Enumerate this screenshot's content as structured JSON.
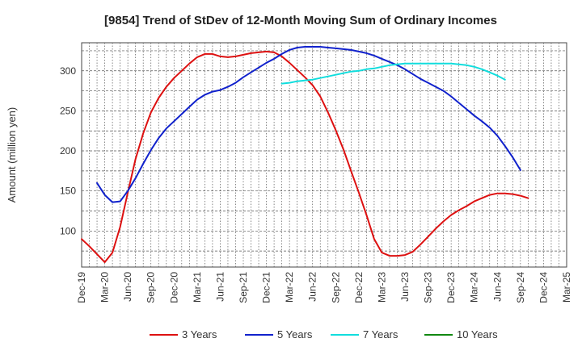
{
  "chart_data": {
    "type": "line",
    "title": "[9854]  Trend of StDev of 12-Month Moving Sum of Ordinary Incomes",
    "xlabel": "",
    "ylabel": "Amount (million yen)",
    "ylim": [
      55,
      335
    ],
    "y_ticks": [
      100,
      150,
      200,
      250,
      300
    ],
    "x_ticks": [
      "Dec-19",
      "Mar-20",
      "Jun-20",
      "Sep-20",
      "Dec-20",
      "Mar-21",
      "Jun-21",
      "Sep-21",
      "Dec-21",
      "Mar-22",
      "Jun-22",
      "Sep-22",
      "Dec-22",
      "Mar-23",
      "Jun-23",
      "Sep-23",
      "Dec-23",
      "Mar-24",
      "Jun-24",
      "Sep-24",
      "Dec-24",
      "Mar-25"
    ],
    "grid": true,
    "legend_position": "bottom",
    "series": [
      {
        "name": "3 Years",
        "color": "#dd1111",
        "start_index": 0,
        "values": [
          90,
          81,
          71,
          61,
          73,
          105,
          148,
          190,
          222,
          248,
          266,
          280,
          291,
          300,
          309,
          317,
          321,
          321,
          318,
          317,
          318,
          320,
          322,
          323,
          324,
          323,
          318,
          310,
          301,
          292,
          282,
          268,
          248,
          226,
          202,
          175,
          148,
          120,
          90,
          73,
          69,
          69,
          70,
          74,
          83,
          93,
          103,
          112,
          120,
          126,
          131,
          137,
          141,
          145,
          147,
          147,
          146,
          144,
          141
        ]
      },
      {
        "name": "5 Years",
        "color": "#1122cc",
        "start_index": 2,
        "values": [
          160,
          145,
          136,
          137,
          150,
          166,
          184,
          201,
          216,
          228,
          237,
          246,
          255,
          264,
          270,
          274,
          276,
          280,
          285,
          292,
          298,
          304,
          310,
          315,
          321,
          326,
          329,
          330,
          330,
          330,
          329,
          328,
          327,
          326,
          324,
          322,
          319,
          315,
          311,
          307,
          302,
          296,
          290,
          285,
          280,
          275,
          268,
          260,
          252,
          244,
          237,
          229,
          219,
          206,
          192,
          176
        ]
      },
      {
        "name": "7 Years",
        "color": "#11dddd",
        "start_index": 26,
        "values": [
          284,
          285,
          287,
          288,
          289,
          291,
          293,
          295,
          297,
          299,
          300,
          302,
          303,
          305,
          307,
          308,
          309,
          309,
          309,
          309,
          309,
          309,
          309,
          308,
          307,
          305,
          302,
          298,
          294,
          289
        ]
      },
      {
        "name": "10 Years",
        "color": "#118811",
        "start_index": 0,
        "values": []
      }
    ]
  }
}
